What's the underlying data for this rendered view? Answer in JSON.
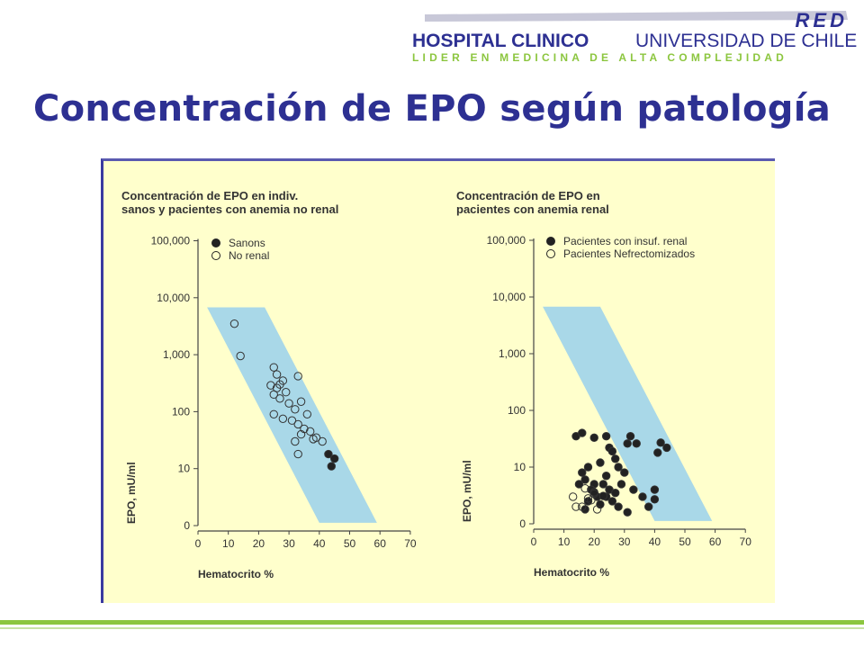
{
  "header": {
    "logo_big": "RED",
    "hospital_bold": "HOSPITAL CLINICO",
    "hospital_rest": "UNIVERSIDAD DE CHILE",
    "tagline": "LIDER EN MEDICINA  DE ALTA COMPLEJIDAD"
  },
  "slide_title": "Concentración de EPO según patología",
  "colors": {
    "title": "#2d3092",
    "band": "#a9d8e8",
    "panel": "#ffffcc",
    "accent_line": "#8cc63f"
  },
  "chart_data": [
    {
      "type": "scatter",
      "title": "Concentración de EPO en indiv.\nsanos y pacientes con anemia no renal",
      "xlabel": "Hematocrito %",
      "ylabel": "EPO, mU/ml",
      "xlim": [
        0,
        70
      ],
      "x_ticks": [
        "0",
        "10",
        "20",
        "30",
        "40",
        "50",
        "60",
        "70"
      ],
      "y_ticks": [
        "0",
        "10",
        "100",
        "1,000",
        "10,000",
        "100,000"
      ],
      "y_scale": "log (0 at bottom tick)",
      "legend_position": "top-left",
      "normal_band": true,
      "series": [
        {
          "name": "Sanons",
          "marker": "filled",
          "points": [
            [
              43,
              18
            ],
            [
              45,
              15
            ],
            [
              44,
              11
            ]
          ]
        },
        {
          "name": "No renal",
          "marker": "open",
          "points": [
            [
              12,
              3500
            ],
            [
              14,
              950
            ],
            [
              24,
              290
            ],
            [
              25,
              600
            ],
            [
              26,
              450
            ],
            [
              27,
              300
            ],
            [
              28,
              350
            ],
            [
              29,
              220
            ],
            [
              25,
              200
            ],
            [
              27,
              170
            ],
            [
              26,
              260
            ],
            [
              33,
              420
            ],
            [
              30,
              140
            ],
            [
              32,
              110
            ],
            [
              34,
              150
            ],
            [
              25,
              90
            ],
            [
              28,
              75
            ],
            [
              31,
              70
            ],
            [
              33,
              60
            ],
            [
              36,
              90
            ],
            [
              35,
              50
            ],
            [
              37,
              45
            ],
            [
              34,
              40
            ],
            [
              32,
              30
            ],
            [
              39,
              35
            ],
            [
              38,
              33
            ],
            [
              41,
              30
            ],
            [
              33,
              18
            ]
          ]
        }
      ]
    },
    {
      "type": "scatter",
      "title": "Concentración de EPO en\npacientes con anemia renal",
      "xlabel": "Hematocrito %",
      "ylabel": "EPO, mU/ml",
      "xlim": [
        0,
        70
      ],
      "x_ticks": [
        "0",
        "10",
        "20",
        "30",
        "40",
        "50",
        "60",
        "70"
      ],
      "y_ticks": [
        "0",
        "10",
        "100",
        "1,000",
        "10,000",
        "100,000"
      ],
      "y_scale": "log (0 at bottom tick)",
      "legend_position": "top-left",
      "normal_band": true,
      "series": [
        {
          "name": "Pacientes con insuf. renal",
          "marker": "filled",
          "points": [
            [
              14,
              35
            ],
            [
              16,
              40
            ],
            [
              20,
              33
            ],
            [
              24,
              35
            ],
            [
              31,
              26
            ],
            [
              32,
              35
            ],
            [
              34,
              26
            ],
            [
              42,
              27
            ],
            [
              44,
              22
            ],
            [
              41,
              18
            ],
            [
              25,
              22
            ],
            [
              26,
              19
            ],
            [
              27,
              14
            ],
            [
              18,
              10
            ],
            [
              22,
              12
            ],
            [
              28,
              10
            ],
            [
              30,
              8
            ],
            [
              24,
              7
            ],
            [
              17,
              6
            ],
            [
              20,
              5
            ],
            [
              29,
              5
            ],
            [
              15,
              5
            ],
            [
              19,
              4
            ],
            [
              23,
              5
            ],
            [
              25,
              4
            ],
            [
              27,
              3.5
            ],
            [
              21,
              3
            ],
            [
              18,
              2.5
            ],
            [
              33,
              4
            ],
            [
              36,
              3
            ],
            [
              26,
              2.5
            ],
            [
              28,
              2
            ],
            [
              24,
              3
            ],
            [
              40,
              4
            ],
            [
              38,
              2
            ],
            [
              40,
              2.7
            ],
            [
              31,
              1.6
            ],
            [
              22,
              2.2
            ],
            [
              17,
              1.8
            ],
            [
              20,
              3.6
            ],
            [
              23,
              3.1
            ],
            [
              16,
              8
            ]
          ]
        },
        {
          "name": "Pacientes Nefrectomizados",
          "marker": "open",
          "points": [
            [
              13,
              3
            ],
            [
              14,
              2
            ],
            [
              16,
              2
            ],
            [
              17,
              4.2
            ],
            [
              19,
              2.6
            ],
            [
              20,
              3.4
            ],
            [
              21,
              1.8
            ],
            [
              18,
              2.8
            ]
          ]
        }
      ]
    }
  ]
}
